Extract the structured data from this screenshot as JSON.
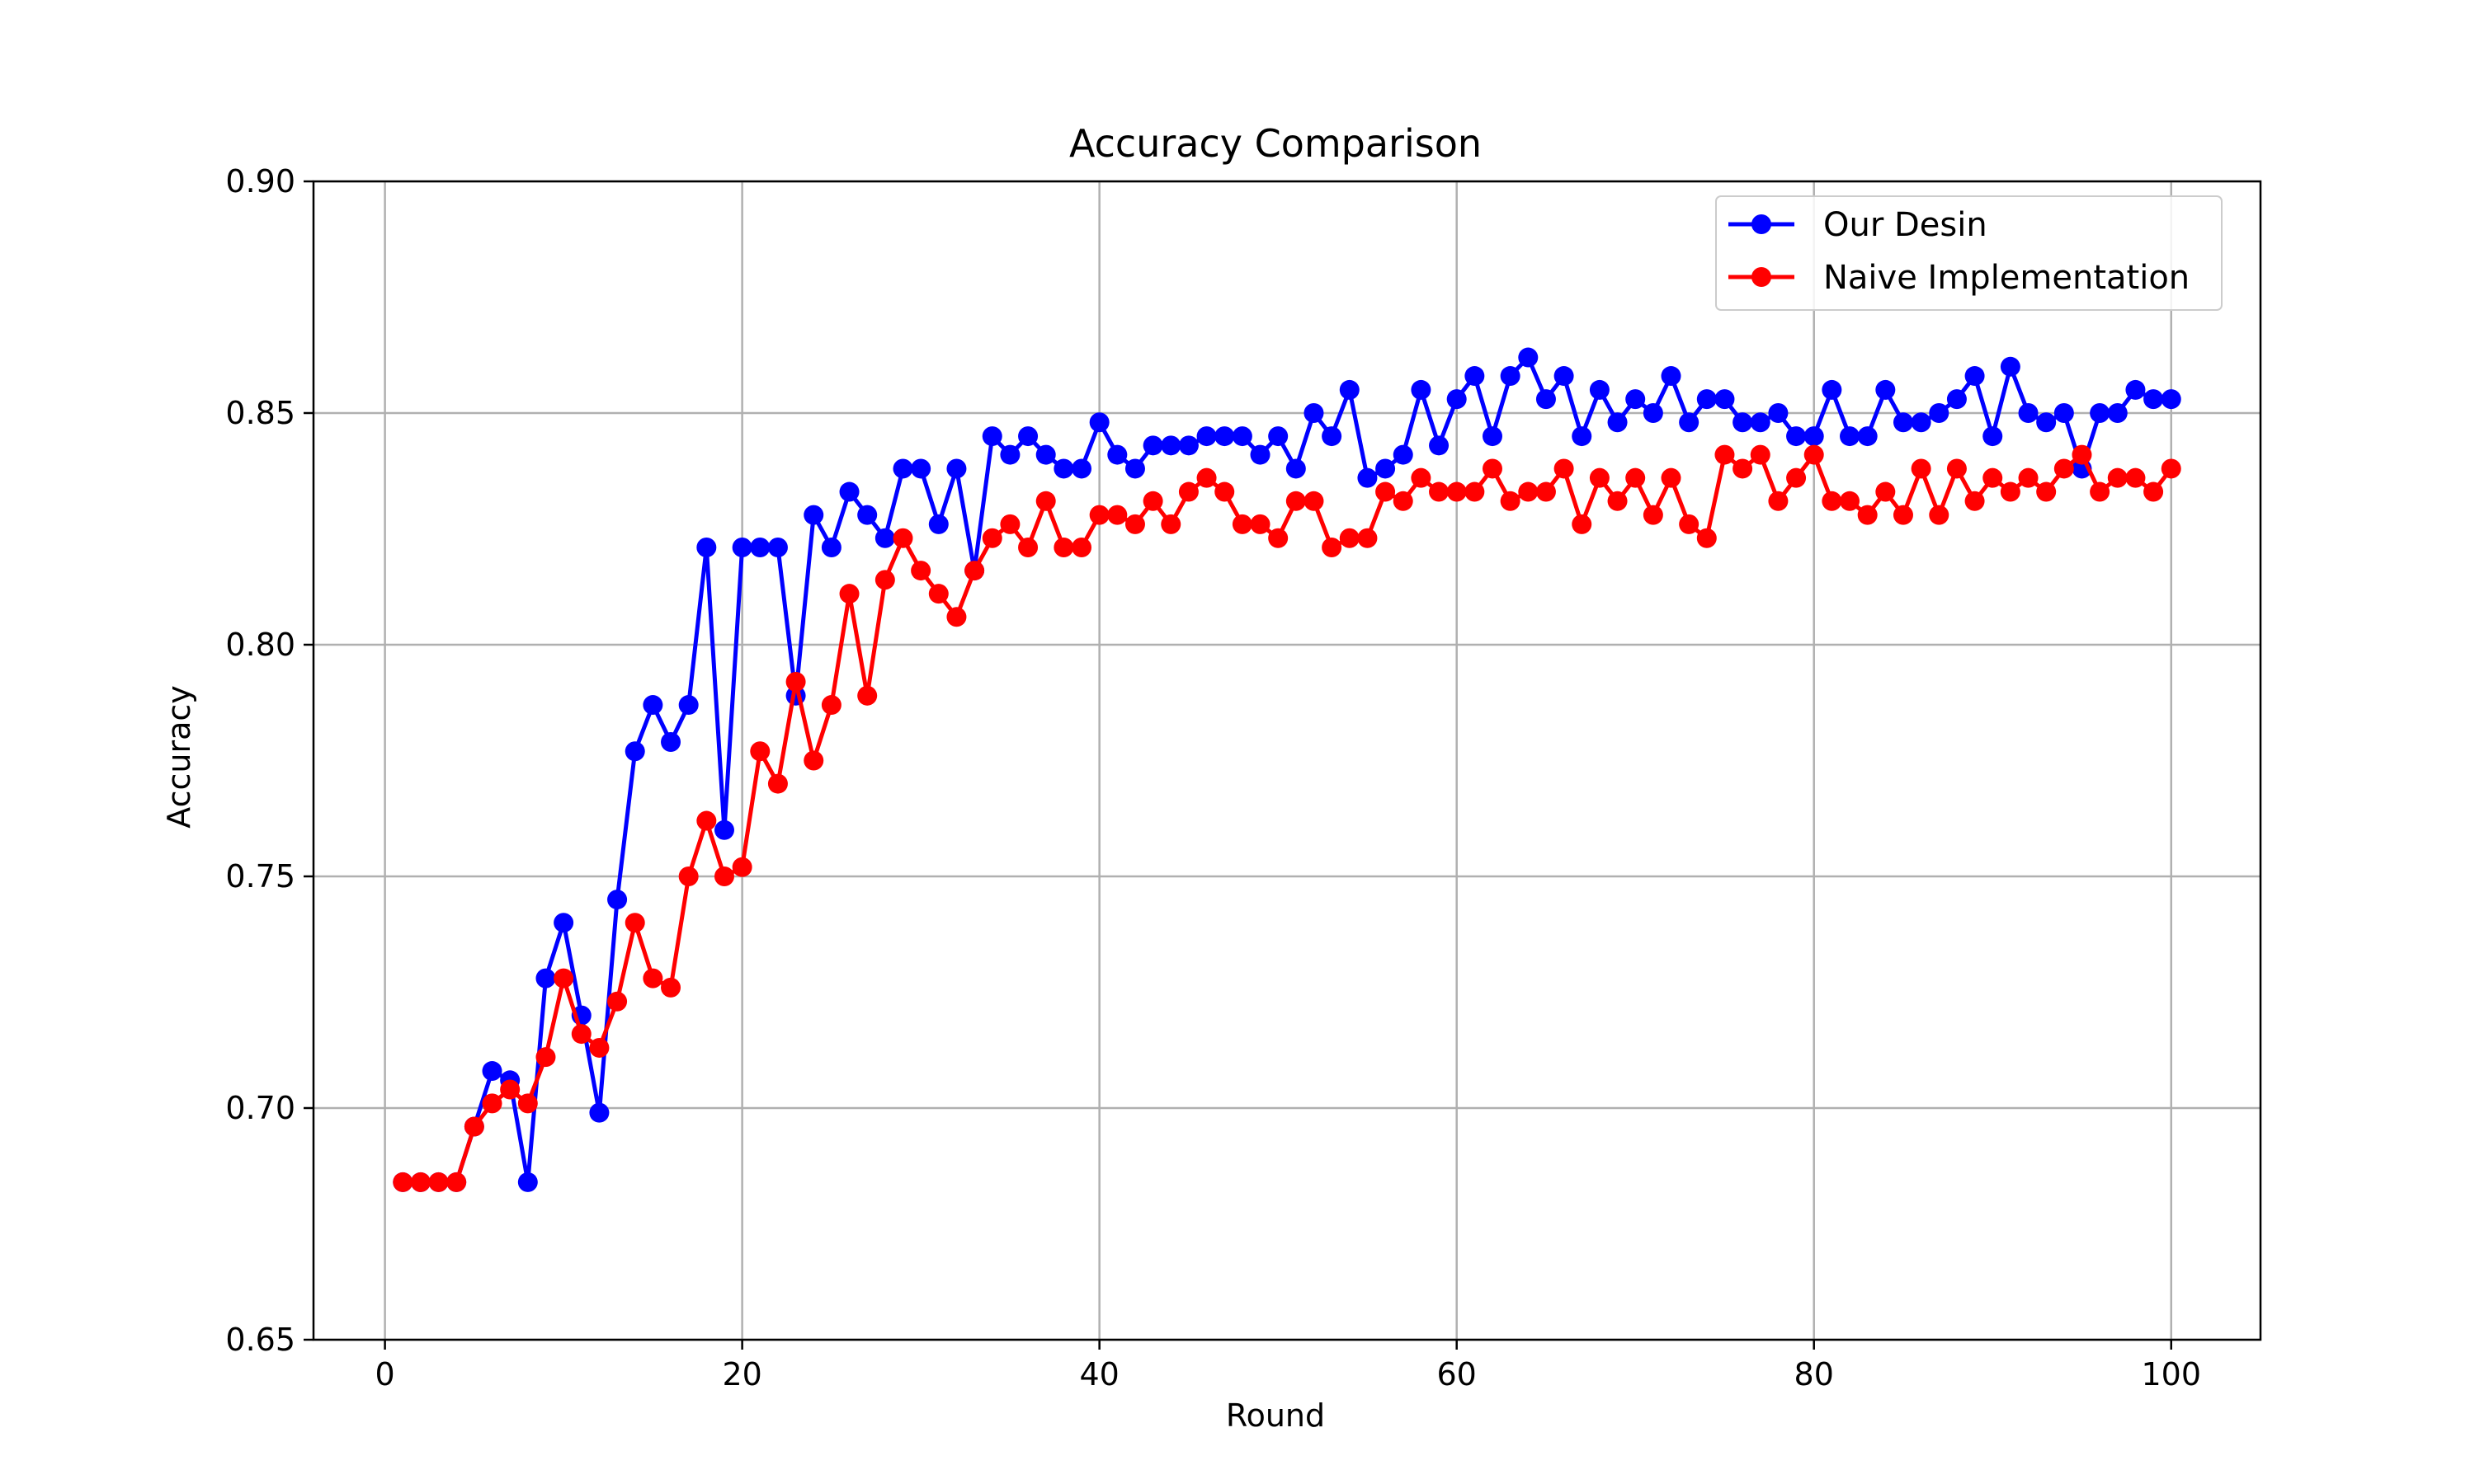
{
  "chart_data": {
    "type": "line",
    "title": "Accuracy Comparison",
    "xlabel": "Round",
    "ylabel": "Accuracy",
    "xlim": [
      -4,
      105
    ],
    "ylim": [
      0.65,
      0.9
    ],
    "xticks": [
      0,
      20,
      40,
      60,
      80,
      100
    ],
    "yticks": [
      0.65,
      0.7,
      0.75,
      0.8,
      0.85,
      0.9
    ],
    "ytick_labels": [
      "0.65",
      "0.70",
      "0.75",
      "0.80",
      "0.85",
      "0.90"
    ],
    "grid": true,
    "legend_position": "top-right",
    "x": [
      1,
      2,
      3,
      4,
      5,
      6,
      7,
      8,
      9,
      10,
      11,
      12,
      13,
      14,
      15,
      16,
      17,
      18,
      19,
      20,
      21,
      22,
      23,
      24,
      25,
      26,
      27,
      28,
      29,
      30,
      31,
      32,
      33,
      34,
      35,
      36,
      37,
      38,
      39,
      40,
      41,
      42,
      43,
      44,
      45,
      46,
      47,
      48,
      49,
      50,
      51,
      52,
      53,
      54,
      55,
      56,
      57,
      58,
      59,
      60,
      61,
      62,
      63,
      64,
      65,
      66,
      67,
      68,
      69,
      70,
      71,
      72,
      73,
      74,
      75,
      76,
      77,
      78,
      79,
      80,
      81,
      82,
      83,
      84,
      85,
      86,
      87,
      88,
      89,
      90,
      91,
      92,
      93,
      94,
      95,
      96,
      97,
      98,
      99,
      100
    ],
    "series": [
      {
        "name": "Our Desin",
        "color": "#0000ff",
        "values": [
          0.684,
          0.684,
          0.684,
          0.684,
          0.696,
          0.708,
          0.706,
          0.684,
          0.728,
          0.74,
          0.72,
          0.699,
          0.745,
          0.777,
          0.787,
          0.779,
          0.787,
          0.821,
          0.76,
          0.821,
          0.821,
          0.821,
          0.789,
          0.828,
          0.821,
          0.833,
          0.828,
          0.823,
          0.838,
          0.838,
          0.826,
          0.838,
          0.816,
          0.845,
          0.841,
          0.845,
          0.841,
          0.838,
          0.838,
          0.848,
          0.841,
          0.838,
          0.843,
          0.843,
          0.843,
          0.845,
          0.845,
          0.845,
          0.841,
          0.845,
          0.838,
          0.85,
          0.845,
          0.855,
          0.836,
          0.838,
          0.841,
          0.855,
          0.843,
          0.853,
          0.858,
          0.845,
          0.858,
          0.862,
          0.853,
          0.858,
          0.845,
          0.855,
          0.848,
          0.853,
          0.85,
          0.858,
          0.848,
          0.853,
          0.853,
          0.848,
          0.848,
          0.85,
          0.845,
          0.845,
          0.855,
          0.845,
          0.845,
          0.855,
          0.848,
          0.848,
          0.85,
          0.853,
          0.858,
          0.845,
          0.86,
          0.85,
          0.848,
          0.85,
          0.838,
          0.85,
          0.85,
          0.855,
          0.853,
          0.853
        ]
      },
      {
        "name": "Naive Implementation",
        "color": "#ff0000",
        "values": [
          0.684,
          0.684,
          0.684,
          0.684,
          0.696,
          0.701,
          0.704,
          0.701,
          0.711,
          0.728,
          0.716,
          0.713,
          0.723,
          0.74,
          0.728,
          0.726,
          0.75,
          0.762,
          0.75,
          0.752,
          0.777,
          0.77,
          0.792,
          0.775,
          0.787,
          0.811,
          0.789,
          0.814,
          0.823,
          0.816,
          0.811,
          0.806,
          0.816,
          0.823,
          0.826,
          0.821,
          0.831,
          0.821,
          0.821,
          0.828,
          0.828,
          0.826,
          0.831,
          0.826,
          0.833,
          0.836,
          0.833,
          0.826,
          0.826,
          0.823,
          0.831,
          0.831,
          0.821,
          0.823,
          0.823,
          0.833,
          0.831,
          0.836,
          0.833,
          0.833,
          0.833,
          0.838,
          0.831,
          0.833,
          0.833,
          0.838,
          0.826,
          0.836,
          0.831,
          0.836,
          0.828,
          0.836,
          0.826,
          0.823,
          0.841,
          0.838,
          0.841,
          0.831,
          0.836,
          0.841,
          0.831,
          0.831,
          0.828,
          0.833,
          0.828,
          0.838,
          0.828,
          0.838,
          0.831,
          0.836,
          0.833,
          0.836,
          0.833,
          0.838,
          0.841,
          0.833,
          0.836,
          0.836,
          0.833,
          0.838
        ]
      }
    ]
  }
}
